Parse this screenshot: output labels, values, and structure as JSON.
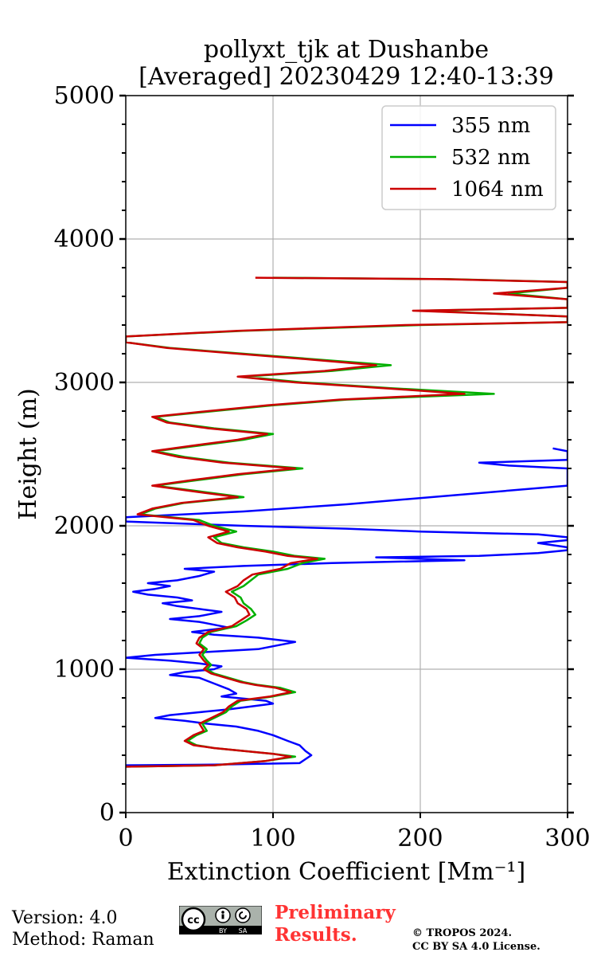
{
  "chart_data": {
    "type": "line",
    "title": "pollyxt_tjk at Dushanbe",
    "subtitle": "[Averaged] 20230429 12:40-13:39",
    "xlabel": "Extinction Coefficient [Mm⁻¹]",
    "ylabel": "Height (m)",
    "xlim": [
      0,
      300
    ],
    "ylim": [
      0,
      5000
    ],
    "xticks": [
      0,
      100,
      200,
      300
    ],
    "yticks": [
      0,
      1000,
      2000,
      3000,
      4000,
      5000
    ],
    "grid": true,
    "legend_position": "top-right",
    "series": [
      {
        "name": "355 nm",
        "color": "#0000ff",
        "points": [
          [
            0,
            330
          ],
          [
            60,
            335
          ],
          [
            118,
            345
          ],
          [
            126,
            400
          ],
          [
            122,
            430
          ],
          [
            118,
            470
          ],
          [
            110,
            500
          ],
          [
            100,
            540
          ],
          [
            90,
            570
          ],
          [
            75,
            600
          ],
          [
            55,
            620
          ],
          [
            40,
            640
          ],
          [
            30,
            650
          ],
          [
            20,
            660
          ],
          [
            30,
            680
          ],
          [
            50,
            700
          ],
          [
            70,
            720
          ],
          [
            100,
            760
          ],
          [
            95,
            780
          ],
          [
            75,
            800
          ],
          [
            65,
            810
          ],
          [
            75,
            830
          ],
          [
            70,
            860
          ],
          [
            60,
            900
          ],
          [
            50,
            940
          ],
          [
            30,
            960
          ],
          [
            40,
            980
          ],
          [
            60,
            1000
          ],
          [
            65,
            1020
          ],
          [
            50,
            1040
          ],
          [
            30,
            1060
          ],
          [
            0,
            1080
          ],
          [
            20,
            1100
          ],
          [
            55,
            1120
          ],
          [
            90,
            1140
          ],
          [
            100,
            1160
          ],
          [
            115,
            1190
          ],
          [
            90,
            1220
          ],
          [
            60,
            1240
          ],
          [
            45,
            1260
          ],
          [
            70,
            1290
          ],
          [
            60,
            1310
          ],
          [
            50,
            1330
          ],
          [
            30,
            1350
          ],
          [
            50,
            1370
          ],
          [
            65,
            1400
          ],
          [
            50,
            1420
          ],
          [
            35,
            1440
          ],
          [
            25,
            1460
          ],
          [
            45,
            1480
          ],
          [
            35,
            1500
          ],
          [
            15,
            1520
          ],
          [
            5,
            1540
          ],
          [
            20,
            1560
          ],
          [
            30,
            1580
          ],
          [
            15,
            1600
          ],
          [
            35,
            1620
          ],
          [
            50,
            1650
          ],
          [
            60,
            1680
          ],
          [
            40,
            1700
          ],
          [
            80,
            1720
          ],
          [
            140,
            1740
          ],
          [
            230,
            1760
          ],
          [
            170,
            1780
          ],
          [
            240,
            1790
          ],
          [
            280,
            1810
          ],
          [
            300,
            1830
          ],
          [
            300,
            1850
          ],
          [
            280,
            1880
          ],
          [
            300,
            1900
          ],
          [
            300,
            1920
          ],
          [
            280,
            1940
          ],
          [
            200,
            1960
          ],
          [
            150,
            1980
          ],
          [
            80,
            2000
          ],
          [
            0,
            2030
          ],
          [
            0,
            2060
          ],
          [
            80,
            2100
          ],
          [
            150,
            2150
          ],
          [
            300,
            2280
          ],
          [
            300,
            2400
          ],
          [
            260,
            2420
          ],
          [
            240,
            2440
          ],
          [
            300,
            2460
          ],
          [
            300,
            2520
          ],
          [
            290,
            2540
          ]
        ]
      },
      {
        "name": "532 nm",
        "color": "#00b000",
        "points": [
          [
            0,
            320
          ],
          [
            60,
            330
          ],
          [
            95,
            360
          ],
          [
            115,
            390
          ],
          [
            100,
            410
          ],
          [
            80,
            430
          ],
          [
            60,
            450
          ],
          [
            48,
            470
          ],
          [
            42,
            500
          ],
          [
            48,
            540
          ],
          [
            55,
            570
          ],
          [
            52,
            620
          ],
          [
            60,
            660
          ],
          [
            68,
            700
          ],
          [
            72,
            740
          ],
          [
            78,
            780
          ],
          [
            100,
            810
          ],
          [
            115,
            840
          ],
          [
            105,
            870
          ],
          [
            90,
            890
          ],
          [
            80,
            910
          ],
          [
            70,
            940
          ],
          [
            60,
            970
          ],
          [
            55,
            1000
          ],
          [
            58,
            1030
          ],
          [
            55,
            1060
          ],
          [
            52,
            1100
          ],
          [
            55,
            1140
          ],
          [
            50,
            1180
          ],
          [
            52,
            1220
          ],
          [
            58,
            1260
          ],
          [
            75,
            1300
          ],
          [
            82,
            1340
          ],
          [
            88,
            1380
          ],
          [
            85,
            1420
          ],
          [
            80,
            1460
          ],
          [
            78,
            1500
          ],
          [
            72,
            1540
          ],
          [
            80,
            1580
          ],
          [
            85,
            1620
          ],
          [
            90,
            1660
          ],
          [
            110,
            1700
          ],
          [
            120,
            1740
          ],
          [
            135,
            1770
          ],
          [
            115,
            1790
          ],
          [
            100,
            1820
          ],
          [
            80,
            1850
          ],
          [
            65,
            1880
          ],
          [
            60,
            1920
          ],
          [
            75,
            1960
          ],
          [
            60,
            2000
          ],
          [
            50,
            2040
          ],
          [
            10,
            2080
          ],
          [
            20,
            2120
          ],
          [
            40,
            2160
          ],
          [
            80,
            2200
          ],
          [
            50,
            2240
          ],
          [
            20,
            2280
          ],
          [
            50,
            2320
          ],
          [
            80,
            2360
          ],
          [
            120,
            2400
          ],
          [
            70,
            2440
          ],
          [
            40,
            2480
          ],
          [
            20,
            2520
          ],
          [
            50,
            2560
          ],
          [
            80,
            2600
          ],
          [
            100,
            2640
          ],
          [
            60,
            2680
          ],
          [
            30,
            2720
          ],
          [
            20,
            2760
          ],
          [
            60,
            2800
          ],
          [
            100,
            2840
          ],
          [
            150,
            2880
          ],
          [
            250,
            2920
          ],
          [
            180,
            2960
          ],
          [
            120,
            3000
          ],
          [
            80,
            3040
          ],
          [
            140,
            3080
          ],
          [
            180,
            3120
          ],
          [
            130,
            3160
          ],
          [
            80,
            3200
          ],
          [
            30,
            3240
          ],
          [
            0,
            3280
          ],
          [
            0,
            3320
          ],
          [
            80,
            3360
          ],
          [
            200,
            3400
          ],
          [
            300,
            3420
          ],
          [
            300,
            3460
          ],
          [
            200,
            3500
          ],
          [
            300,
            3520
          ],
          [
            300,
            3580
          ],
          [
            260,
            3620
          ],
          [
            300,
            3660
          ],
          [
            300,
            3700
          ],
          [
            220,
            3720
          ],
          [
            100,
            3730
          ]
        ]
      },
      {
        "name": "1064 nm",
        "color": "#cc0000",
        "points": [
          [
            0,
            320
          ],
          [
            60,
            330
          ],
          [
            95,
            360
          ],
          [
            112,
            390
          ],
          [
            100,
            410
          ],
          [
            80,
            430
          ],
          [
            60,
            450
          ],
          [
            46,
            470
          ],
          [
            40,
            500
          ],
          [
            46,
            540
          ],
          [
            53,
            570
          ],
          [
            50,
            620
          ],
          [
            58,
            660
          ],
          [
            66,
            700
          ],
          [
            70,
            740
          ],
          [
            76,
            780
          ],
          [
            98,
            810
          ],
          [
            112,
            840
          ],
          [
            102,
            870
          ],
          [
            88,
            890
          ],
          [
            78,
            910
          ],
          [
            68,
            940
          ],
          [
            58,
            970
          ],
          [
            53,
            1000
          ],
          [
            56,
            1030
          ],
          [
            53,
            1060
          ],
          [
            50,
            1100
          ],
          [
            53,
            1140
          ],
          [
            48,
            1180
          ],
          [
            50,
            1220
          ],
          [
            56,
            1260
          ],
          [
            72,
            1300
          ],
          [
            78,
            1340
          ],
          [
            84,
            1380
          ],
          [
            82,
            1420
          ],
          [
            76,
            1460
          ],
          [
            74,
            1500
          ],
          [
            68,
            1540
          ],
          [
            76,
            1580
          ],
          [
            80,
            1620
          ],
          [
            86,
            1660
          ],
          [
            105,
            1700
          ],
          [
            112,
            1740
          ],
          [
            130,
            1770
          ],
          [
            110,
            1790
          ],
          [
            95,
            1820
          ],
          [
            76,
            1850
          ],
          [
            62,
            1880
          ],
          [
            56,
            1920
          ],
          [
            70,
            1960
          ],
          [
            56,
            2000
          ],
          [
            46,
            2040
          ],
          [
            8,
            2080
          ],
          [
            18,
            2120
          ],
          [
            38,
            2160
          ],
          [
            76,
            2200
          ],
          [
            46,
            2240
          ],
          [
            18,
            2280
          ],
          [
            46,
            2320
          ],
          [
            76,
            2360
          ],
          [
            115,
            2400
          ],
          [
            66,
            2440
          ],
          [
            36,
            2480
          ],
          [
            18,
            2520
          ],
          [
            46,
            2560
          ],
          [
            76,
            2600
          ],
          [
            96,
            2640
          ],
          [
            56,
            2680
          ],
          [
            28,
            2720
          ],
          [
            18,
            2760
          ],
          [
            56,
            2800
          ],
          [
            96,
            2840
          ],
          [
            145,
            2880
          ],
          [
            230,
            2920
          ],
          [
            175,
            2960
          ],
          [
            115,
            3000
          ],
          [
            76,
            3040
          ],
          [
            135,
            3080
          ],
          [
            170,
            3120
          ],
          [
            125,
            3160
          ],
          [
            76,
            3200
          ],
          [
            28,
            3240
          ],
          [
            0,
            3280
          ],
          [
            0,
            3320
          ],
          [
            76,
            3360
          ],
          [
            190,
            3400
          ],
          [
            300,
            3420
          ],
          [
            300,
            3460
          ],
          [
            195,
            3500
          ],
          [
            300,
            3520
          ],
          [
            300,
            3580
          ],
          [
            250,
            3620
          ],
          [
            300,
            3660
          ],
          [
            300,
            3700
          ],
          [
            215,
            3720
          ],
          [
            88,
            3730
          ]
        ]
      }
    ]
  },
  "footer": {
    "version": "Version: 4.0",
    "method": "Method: Raman",
    "preliminary_1": "Preliminary",
    "preliminary_2": "Results.",
    "copyright_1": "© TROPOS 2024.",
    "copyright_2": "CC BY SA 4.0 License.",
    "license_badge": {
      "cc": "cc",
      "by": "BY",
      "sa": "SA"
    }
  }
}
